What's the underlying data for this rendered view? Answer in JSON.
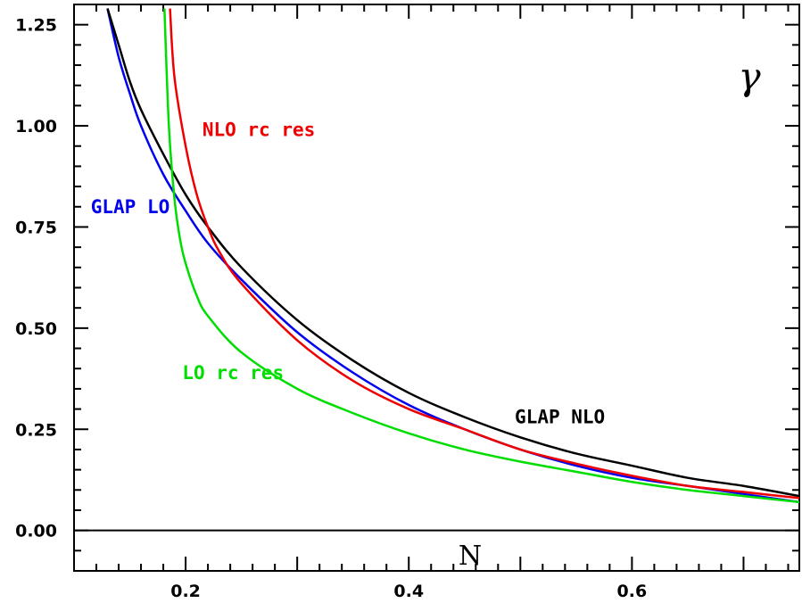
{
  "chart_data": {
    "type": "line",
    "title": "",
    "xlabel": "N",
    "ylabel": "",
    "symbol": "γ",
    "xlim": [
      0.1,
      0.75
    ],
    "ylim": [
      -0.1,
      1.3
    ],
    "x_ticks": [
      {
        "value": 0.2,
        "label": "0.2"
      },
      {
        "value": 0.4,
        "label": "0.4"
      },
      {
        "value": 0.6,
        "label": "0.6"
      }
    ],
    "y_ticks": [
      {
        "value": 0.0,
        "label": "0.00"
      },
      {
        "value": 0.25,
        "label": "0.25"
      },
      {
        "value": 0.5,
        "label": "0.50"
      },
      {
        "value": 0.75,
        "label": "0.75"
      },
      {
        "value": 1.0,
        "label": "1.00"
      },
      {
        "value": 1.25,
        "label": "1.25"
      }
    ],
    "zero_line": 0,
    "grid": false,
    "series": [
      {
        "name": "GLAP LO",
        "color": "#0000ee",
        "label_anchor": [
          0.115,
          0.8
        ],
        "x": [
          0.13,
          0.14,
          0.15,
          0.16,
          0.18,
          0.2,
          0.22,
          0.25,
          0.3,
          0.35,
          0.4,
          0.45,
          0.5,
          0.55,
          0.6,
          0.65,
          0.7,
          0.75
        ],
        "y": [
          1.29,
          1.17,
          1.08,
          1.0,
          0.88,
          0.79,
          0.71,
          0.62,
          0.49,
          0.39,
          0.31,
          0.25,
          0.2,
          0.16,
          0.13,
          0.11,
          0.09,
          0.07
        ]
      },
      {
        "name": "GLAP NLO",
        "color": "#000000",
        "label_anchor": [
          0.495,
          0.28
        ],
        "x": [
          0.13,
          0.14,
          0.15,
          0.16,
          0.18,
          0.2,
          0.22,
          0.25,
          0.3,
          0.35,
          0.4,
          0.45,
          0.5,
          0.55,
          0.6,
          0.65,
          0.7,
          0.75
        ],
        "y": [
          1.29,
          1.2,
          1.11,
          1.04,
          0.93,
          0.83,
          0.75,
          0.65,
          0.52,
          0.42,
          0.34,
          0.28,
          0.23,
          0.19,
          0.16,
          0.13,
          0.11,
          0.085
        ]
      },
      {
        "name": "NLO rc res",
        "color": "#ee0000",
        "label_anchor": [
          0.215,
          0.99
        ],
        "x": [
          0.186,
          0.19,
          0.2,
          0.21,
          0.22,
          0.23,
          0.25,
          0.3,
          0.35,
          0.4,
          0.45,
          0.5,
          0.55,
          0.6,
          0.65,
          0.7,
          0.75
        ],
        "y": [
          1.29,
          1.12,
          0.95,
          0.83,
          0.75,
          0.69,
          0.61,
          0.47,
          0.37,
          0.3,
          0.25,
          0.2,
          0.165,
          0.135,
          0.11,
          0.095,
          0.08
        ]
      },
      {
        "name": "LO rc res",
        "color": "#00dd00",
        "label_anchor": [
          0.197,
          0.39
        ],
        "x": [
          0.181,
          0.185,
          0.19,
          0.195,
          0.2,
          0.21,
          0.22,
          0.25,
          0.3,
          0.35,
          0.4,
          0.45,
          0.5,
          0.55,
          0.6,
          0.65,
          0.7,
          0.75
        ],
        "y": [
          1.29,
          1.0,
          0.82,
          0.72,
          0.66,
          0.58,
          0.53,
          0.44,
          0.35,
          0.29,
          0.24,
          0.2,
          0.17,
          0.145,
          0.12,
          0.1,
          0.085,
          0.07
        ]
      }
    ]
  }
}
